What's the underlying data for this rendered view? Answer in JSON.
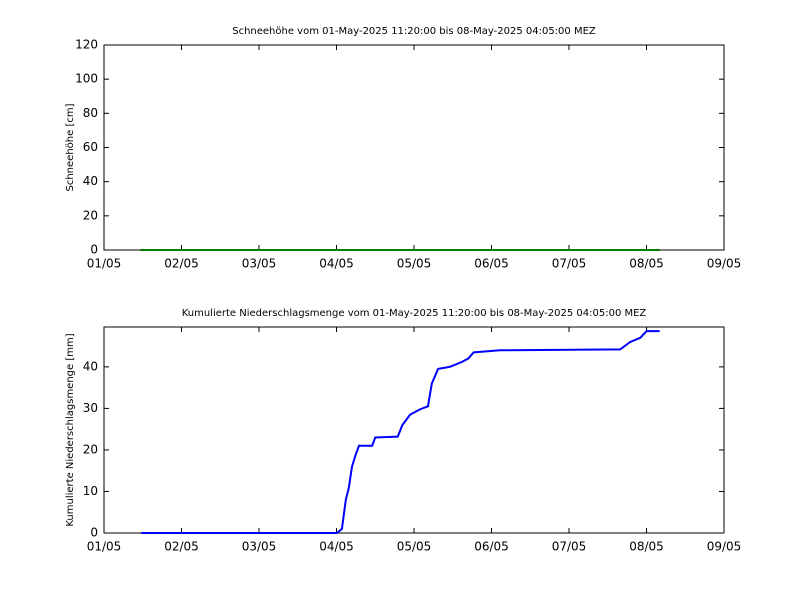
{
  "chart_data": [
    {
      "type": "line",
      "title": "Schneehöhe vom 01-May-2025 11:20:00 bis 08-May-2025 04:05:00 MEZ",
      "y_label": "Schneehöhe [cm]",
      "color": "#008000",
      "x": [
        1.47,
        8.17
      ],
      "values": [
        0,
        0
      ],
      "xlim": [
        1,
        9
      ],
      "xticks": [
        {
          "value": 1,
          "label": "01/05"
        },
        {
          "value": 2,
          "label": "02/05"
        },
        {
          "value": 3,
          "label": "03/05"
        },
        {
          "value": 4,
          "label": "04/05"
        },
        {
          "value": 5,
          "label": "05/05"
        },
        {
          "value": 6,
          "label": "06/05"
        },
        {
          "value": 7,
          "label": "07/05"
        },
        {
          "value": 8,
          "label": "08/05"
        },
        {
          "value": 9,
          "label": "09/05"
        }
      ],
      "ylim": [
        0,
        120
      ],
      "yticks": [
        0,
        20,
        40,
        60,
        80,
        100,
        120
      ]
    },
    {
      "type": "line",
      "title": "Kumulierte Niederschlagsmenge vom 01-May-2025 11:20:00 bis 08-May-2025 04:05:00 MEZ",
      "y_label": "Kumulierte Niederschlagsmenge [mm]",
      "color": "#0000ff",
      "x": [
        1.48,
        4.006,
        4.07,
        4.12,
        4.16,
        4.2,
        4.25,
        4.29,
        4.46,
        4.5,
        4.79,
        4.85,
        4.95,
        5.08,
        5.18,
        5.23,
        5.31,
        5.46,
        5.62,
        5.7,
        5.77,
        6.11,
        7.66,
        7.79,
        7.92,
        8.0,
        8.17
      ],
      "values": [
        0,
        0,
        1,
        8,
        11,
        16,
        19,
        21,
        21,
        23,
        23.2,
        26,
        28.5,
        29.8,
        30.5,
        36,
        39.5,
        40,
        41.2,
        42,
        43.5,
        44,
        44.2,
        46,
        47,
        48.6,
        48.6
      ],
      "xlim": [
        1,
        9
      ],
      "xticks": [
        {
          "value": 1,
          "label": "01/05"
        },
        {
          "value": 2,
          "label": "02/05"
        },
        {
          "value": 3,
          "label": "03/05"
        },
        {
          "value": 4,
          "label": "04/05"
        },
        {
          "value": 5,
          "label": "05/05"
        },
        {
          "value": 6,
          "label": "06/05"
        },
        {
          "value": 7,
          "label": "07/05"
        },
        {
          "value": 8,
          "label": "08/05"
        },
        {
          "value": 9,
          "label": "09/05"
        }
      ],
      "ylim": [
        0,
        49.6
      ],
      "yticks": [
        0,
        10,
        20,
        30,
        40
      ]
    }
  ]
}
